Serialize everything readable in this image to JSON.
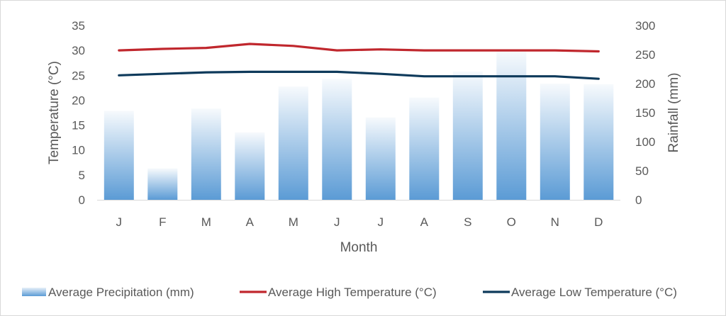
{
  "chart_data": {
    "type": "bar+line",
    "categories": [
      "J",
      "F",
      "M",
      "A",
      "M",
      "J",
      "J",
      "A",
      "S",
      "O",
      "N",
      "D"
    ],
    "xlabel": "Month",
    "ylabel_left": "Temperature (°C)",
    "ylabel_right": "Rainfall (mm)",
    "ylim_left": [
      0,
      35
    ],
    "ylim_right": [
      0,
      300
    ],
    "yticks_left": [
      0,
      5,
      10,
      15,
      20,
      25,
      30,
      35
    ],
    "yticks_right": [
      0,
      50,
      100,
      150,
      200,
      250,
      300
    ],
    "grid": false,
    "legend_position": "bottom",
    "series": [
      {
        "name": "Average Precipitation (mm)",
        "kind": "bar",
        "axis": "right",
        "color": "#5b9bd5",
        "values": [
          153,
          54,
          157,
          116,
          195,
          208,
          142,
          176,
          221,
          255,
          200,
          199
        ]
      },
      {
        "name": "Average High Temperature (°C)",
        "kind": "line",
        "axis": "left",
        "color": "#c0272d",
        "values": [
          30.0,
          30.3,
          30.5,
          31.3,
          30.9,
          30.0,
          30.2,
          30.0,
          30.0,
          30.0,
          30.0,
          29.8
        ]
      },
      {
        "name": "Average Low Temperature (°C)",
        "kind": "line",
        "axis": "left",
        "color": "#0e3a5b",
        "values": [
          25.0,
          25.3,
          25.6,
          25.7,
          25.7,
          25.7,
          25.3,
          24.8,
          24.8,
          24.8,
          24.8,
          24.3
        ]
      }
    ]
  }
}
